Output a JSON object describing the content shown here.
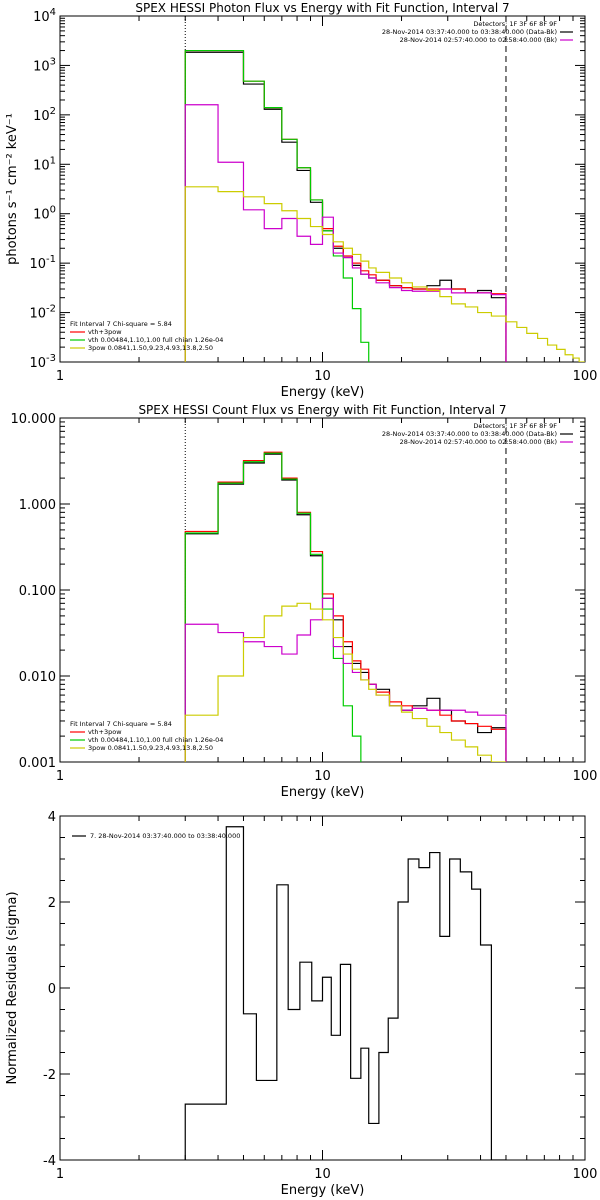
{
  "chart_data": [
    {
      "type": "line",
      "title": "SPEX HESSI Photon Flux vs Energy with Fit Function, Interval 7",
      "xlabel": "Energy (keV)",
      "ylabel": "photons s⁻¹ cm⁻² keV⁻¹",
      "xscale": "log",
      "yscale": "log",
      "xlim": [
        1,
        100
      ],
      "ylim": [
        0.001,
        10000
      ],
      "xticks": [
        {
          "v": 1,
          "label": "1"
        },
        {
          "v": 10,
          "label": "10"
        },
        {
          "v": 100,
          "label": "100"
        }
      ],
      "yticks": [
        {
          "v": 0.001,
          "base": "10",
          "exp": "-3"
        },
        {
          "v": 0.01,
          "base": "10",
          "exp": "-2"
        },
        {
          "v": 0.1,
          "base": "10",
          "exp": "-1"
        },
        {
          "v": 1,
          "base": "10",
          "exp": "0"
        },
        {
          "v": 10,
          "base": "10",
          "exp": "1"
        },
        {
          "v": 100,
          "base": "10",
          "exp": "2"
        },
        {
          "v": 1000,
          "base": "10",
          "exp": "3"
        },
        {
          "v": 10000,
          "base": "10",
          "exp": "4"
        }
      ],
      "vlines": [
        {
          "x": 3,
          "style": "dotted"
        },
        {
          "x": 50,
          "style": "dashed"
        }
      ],
      "legend_top": [
        "Detectors: 1F 3F 6F 8F 9F",
        "28-Nov-2014 03:37:40.000 to 03:38:40.000 (Data-Bk)",
        "28-Nov-2014 02:57:40.000 to 02:58:40.000 (Bk)"
      ],
      "legend_top_colors": [
        "#000000",
        "#cc00cc"
      ],
      "legend_bottom": [
        "Fit Interval  7    Chi-square = 5.84",
        "vth+3pow",
        "vth 0.00484,1.10,1.00   full chian 1.26e-04",
        "3pow 0.0841,1.50,9.23,4.93,13.8,2.50"
      ],
      "legend_bottom_colors": [
        "#ff0000",
        "#00cc00",
        "#cccc00"
      ],
      "edges": [
        3,
        4,
        5,
        6,
        7,
        8,
        9,
        10,
        11,
        12,
        13,
        14,
        15,
        16,
        18,
        20,
        22,
        25,
        28,
        31,
        35,
        39,
        44,
        50
      ],
      "series": [
        {
          "color": "#000000",
          "values": [
            1850,
            1850,
            420,
            130,
            28,
            7.5,
            1.7,
            0.45,
            0.2,
            0.13,
            0.09,
            0.06,
            0.05,
            0.045,
            0.035,
            0.032,
            0.03,
            0.035,
            0.045,
            0.03,
            0.025,
            0.028,
            0.02
          ],
          "start": 3,
          "end": 50
        },
        {
          "color": "#ff0000",
          "values": [
            2000,
            2000,
            480,
            140,
            32,
            8.5,
            1.9,
            0.5,
            0.22,
            0.14,
            0.1,
            0.07,
            0.058,
            0.045,
            0.035,
            0.032,
            0.03,
            0.03,
            0.03,
            0.03,
            0.025,
            0.025,
            0.024
          ],
          "start": 3,
          "end": 50
        },
        {
          "color": "#00cc00",
          "values": [
            2000,
            2000,
            480,
            140,
            32,
            8.5,
            1.9,
            0.45,
            0.14,
            0.05,
            0.012,
            0.0025,
            0.0009,
            0.0009
          ],
          "start": 3,
          "end": 16.3
        },
        {
          "color": "#cc00cc",
          "values": [
            160,
            11,
            1.2,
            0.5,
            0.8,
            0.35,
            0.24,
            0.85,
            0.16,
            0.13,
            0.08,
            0.06,
            0.05,
            0.04,
            0.032,
            0.028,
            0.027,
            0.027,
            0.03,
            0.025,
            0.025,
            0.025,
            0.023
          ],
          "start": 3,
          "end": 50
        },
        {
          "color": "#cccc00",
          "values": [
            3.5,
            2.8,
            2.2,
            1.6,
            1.15,
            0.8,
            0.55,
            0.38,
            0.27,
            0.2,
            0.15,
            0.11,
            0.08,
            0.065,
            0.05,
            0.04,
            0.033,
            0.028,
            0.021,
            0.015,
            0.013,
            0.01,
            0.0085,
            0.0065,
            0.005,
            0.0038,
            0.003,
            0.0022,
            0.0018,
            0.0014,
            0.0012,
            0.001
          ],
          "edges_override": [
            3,
            4,
            5,
            6,
            7,
            8,
            9,
            10,
            11,
            12,
            13,
            14,
            15,
            16,
            18,
            20,
            22,
            25,
            28,
            31,
            35,
            39,
            44,
            50,
            55,
            60,
            66,
            72,
            78,
            84,
            90,
            95,
            100
          ],
          "start": 3,
          "end": 100
        }
      ]
    },
    {
      "type": "line",
      "title": "SPEX HESSI Count Flux vs Energy with Fit Function, Interval 7",
      "xlabel": "Energy (keV)",
      "ylabel": "",
      "xscale": "log",
      "yscale": "log",
      "xlim": [
        1,
        100
      ],
      "ylim": [
        0.001,
        10
      ],
      "xticks": [
        {
          "v": 1,
          "label": "1"
        },
        {
          "v": 10,
          "label": "10"
        },
        {
          "v": 100,
          "label": "100"
        }
      ],
      "yticks": [
        {
          "v": 0.001,
          "label": "0.001"
        },
        {
          "v": 0.01,
          "label": "0.010"
        },
        {
          "v": 0.1,
          "label": "0.100"
        },
        {
          "v": 1,
          "label": "1.000"
        },
        {
          "v": 10,
          "label": "10.000"
        }
      ],
      "vlines": [
        {
          "x": 3,
          "style": "dotted"
        },
        {
          "x": 50,
          "style": "dashed"
        }
      ],
      "legend_top": [
        "Detectors: 1F 3F 6F 8F 9F",
        "28-Nov-2014 03:37:40.000 to 03:38:40.000 (Data-Bk)",
        "28-Nov-2014 02:57:40.000 to 02:58:40.000 (Bk)"
      ],
      "legend_top_colors": [
        "#000000",
        "#cc00cc"
      ],
      "legend_bottom": [
        "Fit Interval  7    Chi-square = 5.84",
        "vth+3pow",
        "vth 0.00484,1.10,1.00   full chian 1.26e-04",
        "3pow 0.0841,1.50,9.23,4.93,13.8,2.50"
      ],
      "legend_bottom_colors": [
        "#ff0000",
        "#00cc00",
        "#cccc00"
      ],
      "edges": [
        3,
        4,
        5,
        6,
        7,
        8,
        9,
        10,
        11,
        12,
        13,
        14,
        15,
        16,
        18,
        20,
        22,
        25,
        28,
        31,
        35,
        39,
        44,
        50
      ],
      "series": [
        {
          "color": "#000000",
          "values": [
            0.45,
            1.7,
            3.0,
            3.8,
            1.9,
            0.75,
            0.25,
            0.08,
            0.045,
            0.022,
            0.014,
            0.011,
            0.008,
            0.007,
            0.0045,
            0.004,
            0.0045,
            0.0055,
            0.004,
            0.003,
            0.0028,
            0.0022,
            0.0025
          ],
          "start": 3,
          "end": 50
        },
        {
          "color": "#ff0000",
          "values": [
            0.48,
            1.8,
            3.2,
            4.0,
            2.0,
            0.8,
            0.28,
            0.09,
            0.05,
            0.025,
            0.015,
            0.012,
            0.008,
            0.0065,
            0.005,
            0.0045,
            0.0042,
            0.004,
            0.0035,
            0.003,
            0.0028,
            0.0026,
            0.0024
          ],
          "start": 3,
          "end": 50
        },
        {
          "color": "#00cc00",
          "values": [
            0.46,
            1.75,
            3.1,
            3.9,
            1.95,
            0.78,
            0.26,
            0.06,
            0.016,
            0.0045,
            0.002,
            0.0009,
            0.0009
          ],
          "start": 3,
          "end": 15.3
        },
        {
          "color": "#cc00cc",
          "values": [
            0.04,
            0.032,
            0.025,
            0.022,
            0.018,
            0.03,
            0.045,
            0.08,
            0.022,
            0.014,
            0.011,
            0.009,
            0.008,
            0.006,
            0.0045,
            0.004,
            0.0042,
            0.004,
            0.004,
            0.004,
            0.0038,
            0.0035,
            0.0035
          ],
          "start": 3,
          "end": 50
        },
        {
          "color": "#cccc00",
          "values": [
            0.0035,
            0.01,
            0.028,
            0.05,
            0.065,
            0.07,
            0.06,
            0.045,
            0.028,
            0.018,
            0.012,
            0.009,
            0.007,
            0.006,
            0.0045,
            0.0038,
            0.0032,
            0.0026,
            0.0022,
            0.0018,
            0.0015,
            0.0012,
            0.001
          ],
          "start": 3,
          "end": 50
        }
      ]
    },
    {
      "type": "line",
      "title": "",
      "xlabel": "Energy (keV)",
      "ylabel": "Normalized Residuals (sigma)",
      "xscale": "log",
      "yscale": "linear",
      "xlim": [
        1,
        100
      ],
      "ylim": [
        -4,
        4
      ],
      "xticks": [
        {
          "v": 1,
          "label": "1"
        },
        {
          "v": 10,
          "label": "10"
        },
        {
          "v": 100,
          "label": "100"
        }
      ],
      "yticks": [
        {
          "v": -4,
          "label": "-4"
        },
        {
          "v": -2,
          "label": "-2"
        },
        {
          "v": 0,
          "label": "0"
        },
        {
          "v": 2,
          "label": "2"
        },
        {
          "v": 4,
          "label": "4"
        }
      ],
      "legend_top": [],
      "legend_bottom": [],
      "residual_legend": "7. 28-Nov-2014 03:37:40.000 to 03:38:40.000",
      "edges": [
        3,
        4.3,
        5,
        5.6,
        6.7,
        7.4,
        8.2,
        9.1,
        10,
        10.8,
        11.7,
        12.8,
        14,
        15,
        16.4,
        17.8,
        19.4,
        21.2,
        23.3,
        25.6,
        28,
        30.5,
        33.5,
        37,
        40,
        44,
        50
      ],
      "series": [
        {
          "color": "#000000",
          "values": [
            -2.7,
            3.75,
            -0.6,
            -2.15,
            2.4,
            -0.5,
            0.6,
            -0.3,
            0.25,
            -1.1,
            0.55,
            -2.1,
            -1.4,
            -3.15,
            -1.5,
            -0.7,
            2.0,
            3.0,
            2.8,
            3.15,
            1.2,
            3.0,
            2.7,
            2.3,
            1.0,
            -4.0
          ],
          "start": 3,
          "end": 50
        }
      ]
    }
  ]
}
